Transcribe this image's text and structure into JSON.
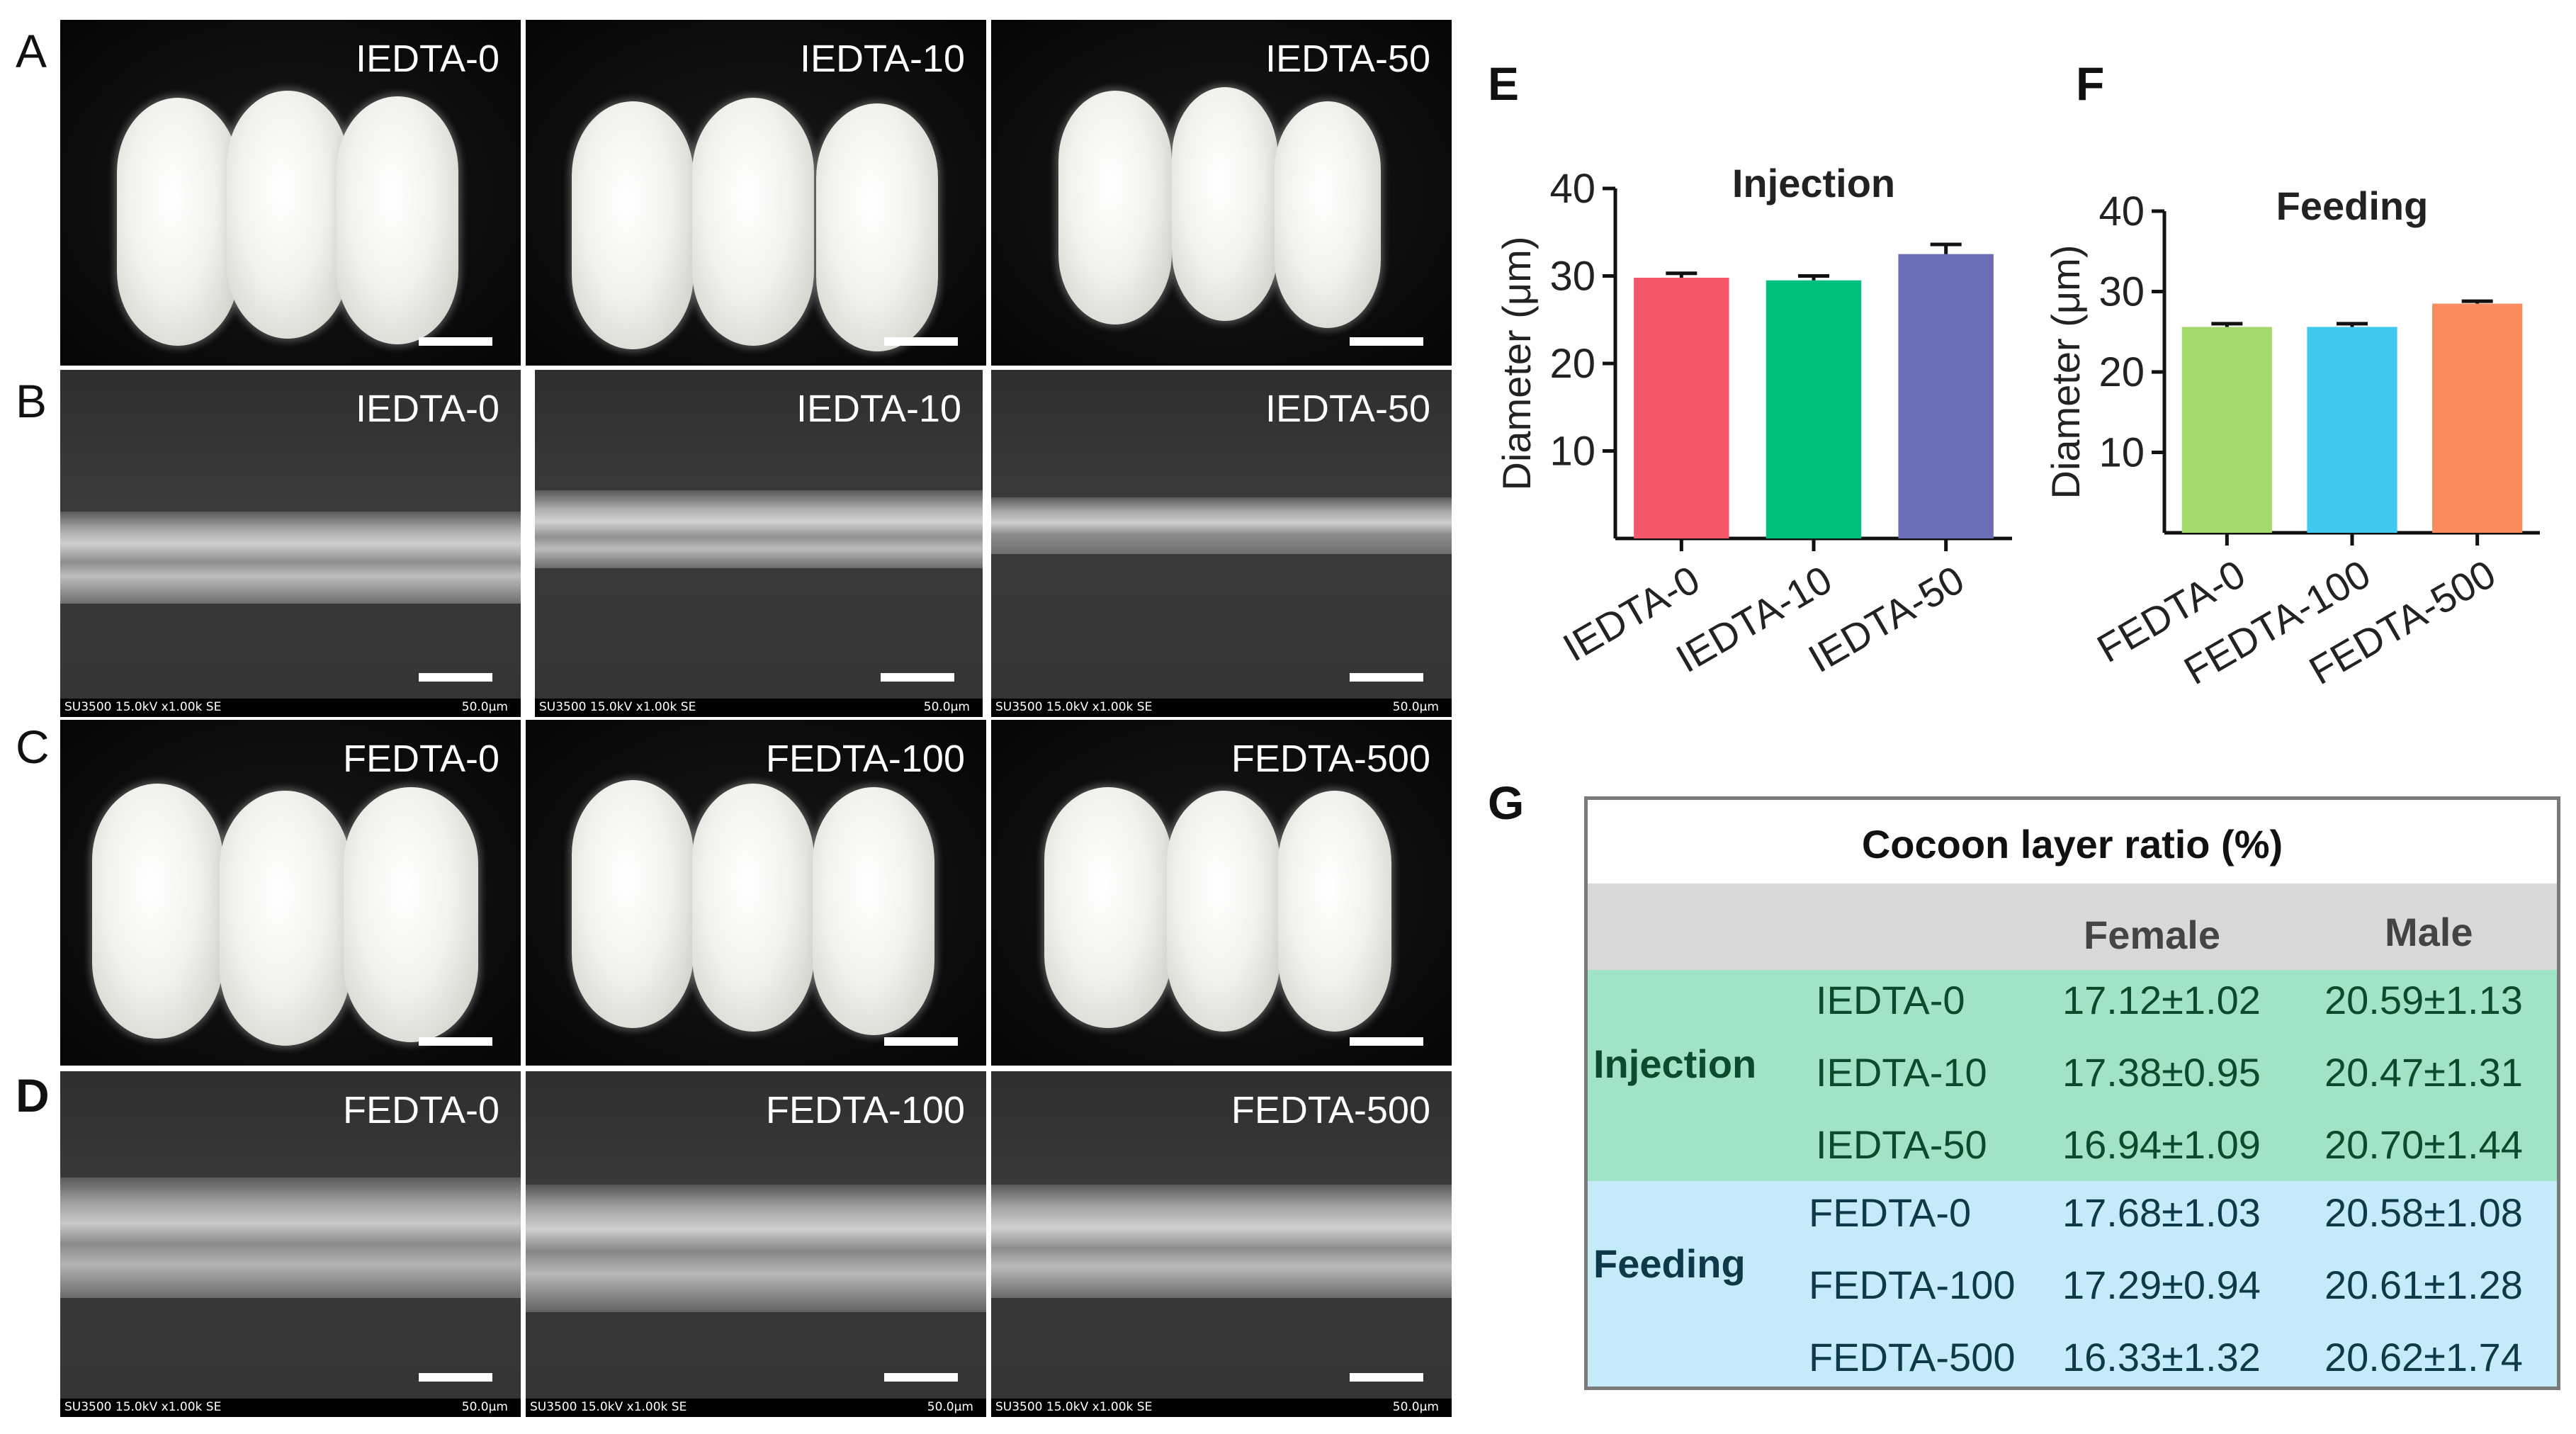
{
  "panels": {
    "A": {
      "label": "A",
      "tiles": [
        "IEDTA-0",
        "IEDTA-10",
        "IEDTA-50"
      ]
    },
    "B": {
      "label": "B",
      "tiles": [
        "IEDTA-0",
        "IEDTA-10",
        "IEDTA-50"
      ],
      "sem_info": "SU3500 15.0kV x1.00k SE",
      "sem_scale": "50.0μm"
    },
    "C": {
      "label": "C",
      "tiles": [
        "FEDTA-0",
        "FEDTA-100",
        "FEDTA-500"
      ]
    },
    "D": {
      "label": "D",
      "tiles": [
        "FEDTA-0",
        "FEDTA-100",
        "FEDTA-500"
      ],
      "sem_info": "SU3500 15.0kV x1.00k SE",
      "sem_scale": "50.0μm"
    },
    "E": {
      "label": "E"
    },
    "F": {
      "label": "F"
    },
    "G": {
      "label": "G"
    }
  },
  "chart_data": [
    {
      "type": "bar",
      "panel": "E",
      "title": "Injection",
      "ylabel": "Diameter (μm)",
      "xlabel": "",
      "categories": [
        "IEDTA-0",
        "IEDTA-10",
        "IEDTA-50"
      ],
      "values": [
        29.8,
        29.5,
        32.5
      ],
      "errors": [
        0.5,
        0.5,
        1.1
      ],
      "colors": [
        "#f4576a",
        "#00c07f",
        "#6a6db5"
      ],
      "ylim": [
        0,
        40
      ],
      "yticks": [
        10,
        20,
        30,
        40
      ]
    },
    {
      "type": "bar",
      "panel": "F",
      "title": "Feeding",
      "ylabel": "Diameter (μm)",
      "xlabel": "",
      "categories": [
        "FEDTA-0",
        "FEDTA-100",
        "FEDTA-500"
      ],
      "values": [
        25.6,
        25.6,
        28.5
      ],
      "errors": [
        0.4,
        0.4,
        0.3
      ],
      "colors": [
        "#a4d96c",
        "#40c9ef",
        "#fb8c60"
      ],
      "ylim": [
        0,
        40
      ],
      "yticks": [
        10,
        20,
        30,
        40
      ]
    },
    {
      "type": "table",
      "panel": "G",
      "title": "Cocoon layer ratio (%)",
      "columns": [
        "",
        "",
        "Female",
        "Male"
      ],
      "groups": [
        {
          "name": "Injection",
          "color": "#a0e3c7",
          "rows": [
            {
              "treatment": "IEDTA-0",
              "female": "17.12±1.02",
              "male": "20.59±1.13"
            },
            {
              "treatment": "IEDTA-10",
              "female": "17.38±0.95",
              "male": "20.47±1.31"
            },
            {
              "treatment": "IEDTA-50",
              "female": "16.94±1.09",
              "male": "20.70±1.44"
            }
          ]
        },
        {
          "name": "Feeding",
          "color": "#c4ebf7",
          "rows": [
            {
              "treatment": "FEDTA-0",
              "female": "17.68±1.03",
              "male": "20.58±1.08"
            },
            {
              "treatment": "FEDTA-100",
              "female": "17.29±0.94",
              "male": "20.61±1.28"
            },
            {
              "treatment": "FEDTA-500",
              "female": "16.33±1.32",
              "male": "20.62±1.74"
            }
          ]
        }
      ]
    }
  ]
}
